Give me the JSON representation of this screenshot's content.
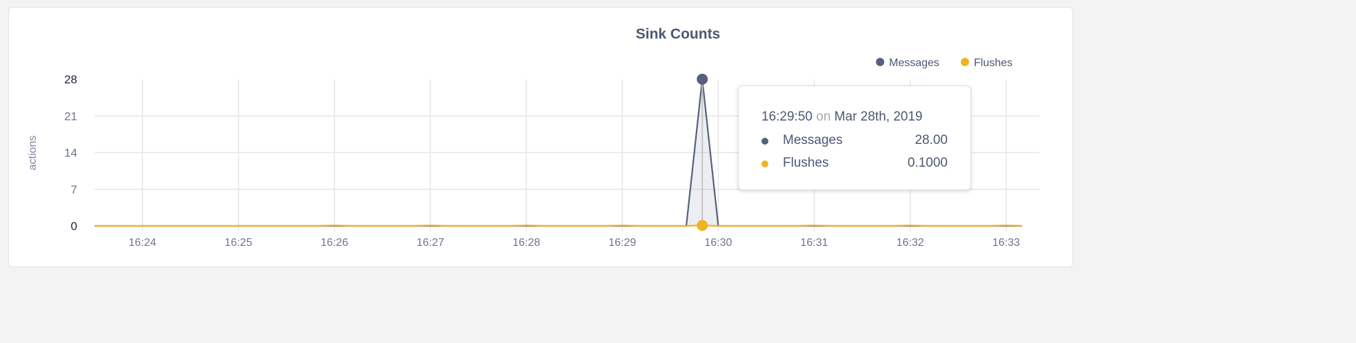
{
  "chart_data": {
    "type": "area",
    "title": "Sink Counts",
    "ylabel": "actions",
    "xlabel": "",
    "ylim": [
      0,
      28
    ],
    "yticks": [
      "0",
      "7",
      "14",
      "21",
      "28"
    ],
    "xlim": [
      "16:23:30",
      "16:33:10"
    ],
    "xticks": [
      "16:24",
      "16:25",
      "16:26",
      "16:27",
      "16:28",
      "16:29",
      "16:30",
      "16:31",
      "16:32",
      "16:33"
    ],
    "grid": true,
    "legend_position": "top-right",
    "series": [
      {
        "name": "Messages",
        "color": "#56607d",
        "points": [
          [
            "16:23:30",
            0
          ],
          [
            "16:29:40",
            0
          ],
          [
            "16:29:50",
            28
          ],
          [
            "16:30:00",
            0
          ],
          [
            "16:33:10",
            0
          ]
        ]
      },
      {
        "name": "Flushes",
        "color": "#f0b323",
        "points": [
          [
            "16:23:30",
            0
          ],
          [
            "16:25:50",
            0
          ],
          [
            "16:26:00",
            0.1
          ],
          [
            "16:26:10",
            0
          ],
          [
            "16:26:50",
            0
          ],
          [
            "16:27:00",
            0.1
          ],
          [
            "16:27:10",
            0
          ],
          [
            "16:27:50",
            0
          ],
          [
            "16:28:00",
            0.1
          ],
          [
            "16:28:10",
            0
          ],
          [
            "16:28:50",
            0
          ],
          [
            "16:29:00",
            0.1
          ],
          [
            "16:29:10",
            0
          ],
          [
            "16:29:40",
            0
          ],
          [
            "16:29:50",
            0.1
          ],
          [
            "16:30:00",
            0
          ],
          [
            "16:30:50",
            0
          ],
          [
            "16:31:00",
            0.1
          ],
          [
            "16:31:10",
            0
          ],
          [
            "16:31:50",
            0
          ],
          [
            "16:32:00",
            0.1
          ],
          [
            "16:32:10",
            0
          ],
          [
            "16:32:50",
            0
          ],
          [
            "16:33:00",
            0.1
          ],
          [
            "16:33:10",
            0
          ]
        ]
      }
    ],
    "highlight_time": "16:29:50"
  },
  "tooltip": {
    "time": "16:29:50",
    "on": "on",
    "date": "Mar 28th, 2019",
    "rows": [
      {
        "name": "Messages",
        "value": "28.00",
        "color": "#56607d"
      },
      {
        "name": "Flushes",
        "value": "0.1000",
        "color": "#f0b323"
      }
    ]
  }
}
